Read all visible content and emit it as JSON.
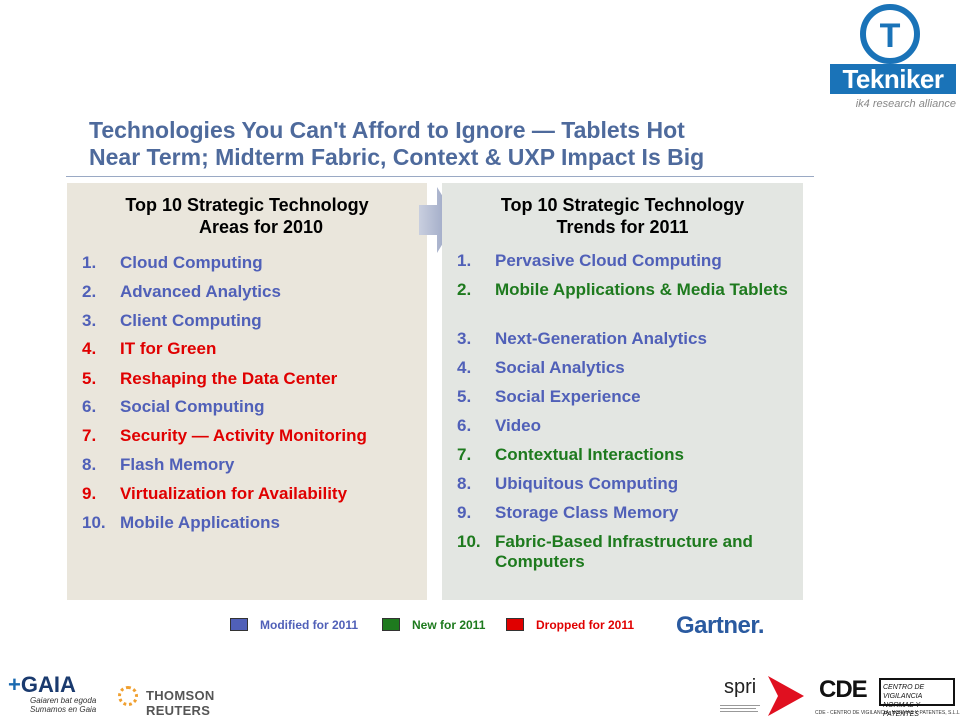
{
  "logos": {
    "tekniker": {
      "wordmark": "Tekniker",
      "tagline": "ik4 research alliance"
    },
    "gartner": "Gartner.",
    "gaia": {
      "wordmark": "GAIA",
      "tagline": "Gaiaren bat egoda Sumamos en Gaia"
    },
    "thomson_reuters": "THOMSON REUTERS",
    "spri": "spri",
    "cde": {
      "wordmark": "CDE",
      "box_text": "CENTRO DE VIGILANCIA NORMAS Y PATENTES",
      "subtitle": "CDE - CENTRO DE VIGILANCIA, NORMAS Y PATENTES, S.L.L."
    }
  },
  "title": {
    "line1": "Technologies You Can't Afford to Ignore — Tablets Hot",
    "line2": "Near Term; Midterm Fabric, Context & UXP Impact Is Big"
  },
  "panel_2010": {
    "heading_line1": "Top 10 Strategic Technology",
    "heading_line2": "Areas for 2010",
    "items": [
      {
        "num": "1.",
        "label": "Cloud Computing",
        "status": "modified"
      },
      {
        "num": "2.",
        "label": "Advanced Analytics",
        "status": "modified"
      },
      {
        "num": "3.",
        "label": "Client Computing",
        "status": "modified"
      },
      {
        "num": "4.",
        "label": "IT for Green",
        "status": "dropped"
      },
      {
        "num": "5.",
        "label": "Reshaping the Data Center",
        "status": "dropped"
      },
      {
        "num": "6.",
        "label": "Social Computing",
        "status": "modified"
      },
      {
        "num": "7.",
        "label": "Security — Activity Monitoring",
        "status": "dropped"
      },
      {
        "num": "8.",
        "label": "Flash Memory",
        "status": "modified"
      },
      {
        "num": "9.",
        "label": "Virtualization for Availability",
        "status": "dropped"
      },
      {
        "num": "10.",
        "label": "Mobile Applications",
        "status": "modified"
      }
    ]
  },
  "panel_2011": {
    "heading_line1": "Top 10 Strategic Technology",
    "heading_line2": "Trends for 2011",
    "items": [
      {
        "num": "1.",
        "label": "Pervasive Cloud Computing",
        "status": "modified"
      },
      {
        "num": "2.",
        "label": "Mobile Applications & Media Tablets",
        "status": "new"
      },
      {
        "num": "3.",
        "label": "Next-Generation Analytics",
        "status": "modified"
      },
      {
        "num": "4.",
        "label": "Social Analytics",
        "status": "modified"
      },
      {
        "num": "5.",
        "label": "Social Experience",
        "status": "modified"
      },
      {
        "num": "6.",
        "label": "Video",
        "status": "modified"
      },
      {
        "num": "7.",
        "label": "Contextual Interactions",
        "status": "new"
      },
      {
        "num": "8.",
        "label": "Ubiquitous Computing",
        "status": "modified"
      },
      {
        "num": "9.",
        "label": "Storage Class Memory",
        "status": "modified"
      },
      {
        "num": "10.",
        "label": "Fabric-Based Infrastructure and Computers",
        "status": "new"
      }
    ]
  },
  "legend": [
    {
      "label": "Modified for 2011",
      "status": "modified"
    },
    {
      "label": "New for 2011",
      "status": "new"
    },
    {
      "label": "Dropped for 2011",
      "status": "dropped"
    }
  ],
  "colors": {
    "modified": "#5060b8",
    "new": "#1e7a1e",
    "dropped": "#e00000",
    "title": "#4e6a9c"
  }
}
